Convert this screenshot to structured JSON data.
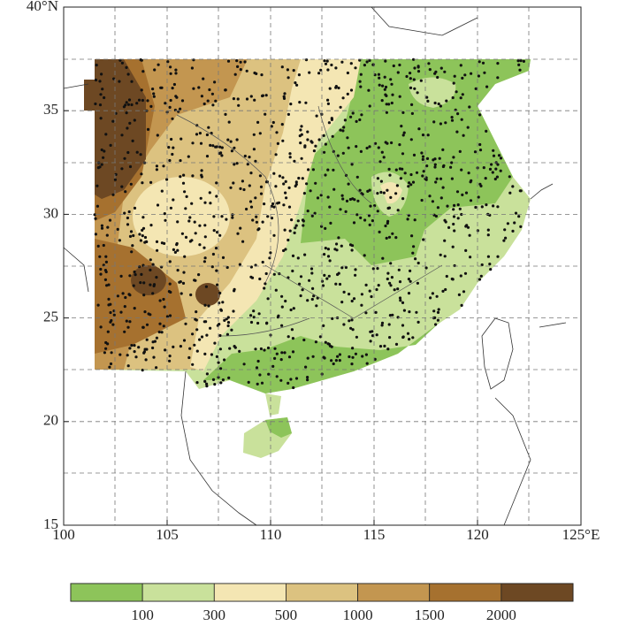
{
  "map": {
    "xlim": [
      100,
      125
    ],
    "ylim": [
      15,
      40
    ],
    "xticks": [
      100,
      105,
      110,
      115,
      120,
      {
        "value": 125,
        "label": "125°E"
      }
    ],
    "yticks": [
      15,
      20,
      25,
      30,
      35,
      {
        "value": 40,
        "label": "40°N"
      }
    ],
    "colorbar": {
      "colors": [
        "#8dc45a",
        "#c9e19b",
        "#f4e6b3",
        "#dcc280",
        "#c39650",
        "#a6712f",
        "#6d4823"
      ],
      "ticks": [
        100,
        300,
        500,
        1000,
        1500,
        2000
      ]
    }
  }
}
